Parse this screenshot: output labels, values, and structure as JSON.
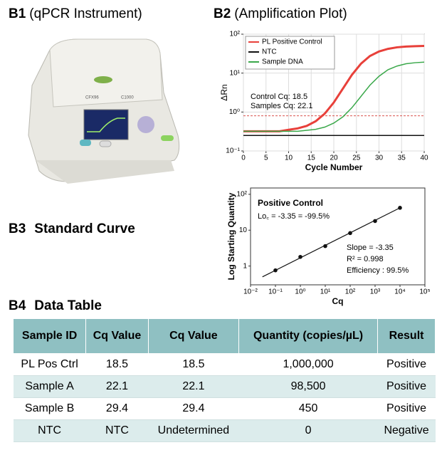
{
  "panels": [
    {
      "label": "B1",
      "title": "(qPCR Instrument)",
      "texts": [
        "CFX96",
        "C1000"
      ]
    },
    {
      "label": "B2",
      "title": "(Amplification Plot)"
    },
    {
      "label": "B3",
      "title": "Standard Curve"
    },
    {
      "label": "B4",
      "title": "Data Table"
    }
  ],
  "chart_data": [
    {
      "type": "line",
      "xlabel": "Cycle Number",
      "ylabel": "ΔRn",
      "x": [
        0,
        2,
        4,
        6,
        8,
        10,
        12,
        14,
        16,
        18,
        20,
        22,
        24,
        26,
        28,
        30,
        32,
        34,
        36,
        38,
        40
      ],
      "xlim": [
        0,
        40
      ],
      "xticks": [
        0,
        5,
        10,
        15,
        20,
        25,
        30,
        35,
        40
      ],
      "ylim": [
        0.1,
        100
      ],
      "log_y": true,
      "yticks": [
        {
          "value": 0.1,
          "label": "10⁻¹"
        },
        {
          "value": 1,
          "label": "10⁰"
        },
        {
          "value": 10,
          "label": "10¹"
        },
        {
          "value": 100,
          "label": "10²"
        }
      ],
      "grid": true,
      "legend": "upper left",
      "threshold": 0.8,
      "threshold_color": "#d9534f",
      "annotations": [
        "Control Cq: 18.5",
        "Samples Cq: 22.1"
      ],
      "series": [
        {
          "name": "PL Positive Control",
          "color": "#e8403a",
          "values": [
            0.32,
            0.32,
            0.32,
            0.32,
            0.32,
            0.35,
            0.38,
            0.44,
            0.58,
            0.91,
            1.76,
            3.98,
            9.0,
            17.4,
            27.5,
            36,
            42,
            46,
            48,
            49,
            50
          ]
        },
        {
          "name": "NTC",
          "color": "#111111",
          "values": [
            0.25,
            0.25,
            0.25,
            0.25,
            0.25,
            0.25,
            0.25,
            0.25,
            0.25,
            0.25,
            0.25,
            0.25,
            0.25,
            0.25,
            0.25,
            0.25,
            0.25,
            0.25,
            0.25,
            0.25,
            0.25
          ]
        },
        {
          "name": "Sample DNA",
          "color": "#3aa84a",
          "values": [
            0.32,
            0.32,
            0.32,
            0.32,
            0.32,
            0.32,
            0.32,
            0.34,
            0.36,
            0.41,
            0.52,
            0.75,
            1.29,
            2.51,
            4.9,
            8.3,
            12.2,
            15.2,
            17.4,
            18.5,
            19.1
          ]
        }
      ]
    },
    {
      "type": "scatter",
      "title": "Positive Control",
      "annotations": [
        "Lo꜀ = -3.35 = -99.5%",
        "Slope = -3.35",
        "R² = 0.998",
        "Efficiency : 99.5%"
      ],
      "xlabel": "Cq",
      "ylabel": "Log Starting Quantity",
      "x": [
        0.1,
        1,
        10,
        100,
        1000,
        10000
      ],
      "values": [
        0.76,
        1.8,
        3.6,
        8.3,
        18,
        42
      ],
      "color": "#111111",
      "log_x": true,
      "log_y": true,
      "xlim": [
        0.01,
        100000
      ],
      "xticks": [
        {
          "value": 0.01,
          "label": "10⁻²"
        },
        {
          "value": 0.1,
          "label": "10⁻¹"
        },
        {
          "value": 1,
          "label": "10⁰"
        },
        {
          "value": 10,
          "label": "10¹"
        },
        {
          "value": 100,
          "label": "10²"
        },
        {
          "value": 1000,
          "label": "10³"
        },
        {
          "value": 10000,
          "label": "10⁴"
        },
        {
          "value": 100000,
          "label": "10⁵"
        }
      ],
      "ylim": [
        0.3,
        150
      ],
      "yticks": [
        1,
        10,
        {
          "value": 100,
          "label": "10²"
        }
      ],
      "trendline": {
        "x": [
          0.03,
          10000
        ],
        "values": [
          0.5,
          42
        ]
      }
    }
  ],
  "table": {
    "header": [
      "Sample ID",
      "Cq Value",
      "Cq Value",
      "Quantity (copies/µL)",
      "Result"
    ],
    "rows": [
      [
        "PL Pos Ctrl",
        "18.5",
        "18.5",
        "1,000,000",
        "Positive"
      ],
      [
        "Sample A",
        "22.1",
        "22.1",
        "98,500",
        "Positive"
      ],
      [
        "Sample B",
        "29.4",
        "29.4",
        "450",
        "Positive"
      ],
      [
        "NTC",
        "NTC",
        "Undetermined",
        "0",
        "Negative"
      ]
    ]
  }
}
